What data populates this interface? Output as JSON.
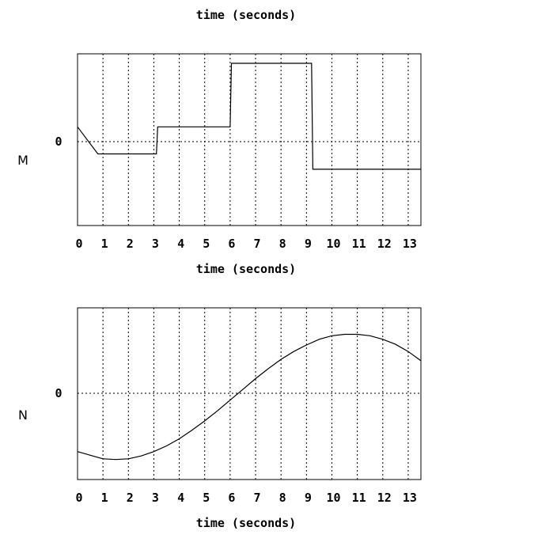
{
  "header": {
    "xlabel": "time (seconds)"
  },
  "chart_data": [
    {
      "type": "line",
      "panel_label": "M",
      "xlabel": "time (seconds)",
      "ylabel": "",
      "y_tick_label": "0",
      "xlim": [
        0,
        13.5
      ],
      "ylim": [
        -1.35,
        1.0
      ],
      "x_ticks": [
        "0",
        "1",
        "2",
        "3",
        "4",
        "5",
        "6",
        "7",
        "8",
        "9",
        "10",
        "11",
        "12",
        "13"
      ],
      "grid": true,
      "series": [
        {
          "x": [
            0,
            0.8,
            3.1,
            3.15,
            6.0,
            6.05,
            9.2,
            9.25,
            13.5
          ],
          "y": [
            0,
            -0.37,
            -0.37,
            0,
            0,
            0.87,
            0.87,
            -0.58,
            -0.58
          ]
        }
      ]
    },
    {
      "type": "line",
      "panel_label": "N",
      "xlabel": "time (seconds)",
      "ylabel": "",
      "y_tick_label": "0",
      "xlim": [
        0,
        13.5
      ],
      "ylim": [
        -1.2,
        1.2
      ],
      "x_ticks": [
        "0",
        "1",
        "2",
        "3",
        "4",
        "5",
        "6",
        "7",
        "8",
        "9",
        "10",
        "11",
        "12",
        "13"
      ],
      "grid": true,
      "series": [
        {
          "x": [
            0,
            0.5,
            1,
            1.5,
            2,
            2.5,
            3,
            3.5,
            4,
            4.5,
            5,
            5.5,
            6,
            6.5,
            7,
            7.5,
            8,
            8.5,
            9,
            9.5,
            10,
            10.5,
            11,
            11.5,
            12,
            12.5,
            13,
            13.5
          ],
          "y": [
            -0.81,
            -0.86,
            -0.91,
            -0.92,
            -0.91,
            -0.87,
            -0.81,
            -0.73,
            -0.63,
            -0.51,
            -0.38,
            -0.24,
            -0.09,
            0.06,
            0.21,
            0.35,
            0.48,
            0.59,
            0.68,
            0.76,
            0.81,
            0.83,
            0.83,
            0.81,
            0.76,
            0.69,
            0.59,
            0.46
          ]
        }
      ]
    }
  ]
}
